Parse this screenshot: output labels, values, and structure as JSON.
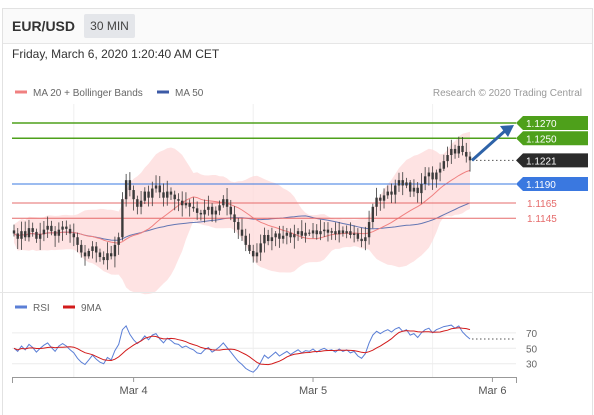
{
  "header": {
    "symbol": "EUR/USD",
    "timeframe": "30 MIN"
  },
  "datetime": "Friday, March 6, 2020 1:20:40 AM CET",
  "credit": "Research © 2020 Trading Central",
  "colors": {
    "ma20": "#f08080",
    "ma50": "#3c5aa6",
    "band": "#fdd9d9",
    "resistance": "#4ea01b",
    "pivot": "#3a78e0",
    "support": "#e56b6b",
    "arrow": "#2e63a8",
    "rsi": "#5b7fd6",
    "rsi_ma": "#d21b1b"
  },
  "chart_data": [
    {
      "type": "candlestick",
      "legend": [
        {
          "name": "MA 20 + Bollinger Bands",
          "color": "#f08080"
        },
        {
          "name": "MA 50",
          "color": "#3c5aa6"
        }
      ],
      "ylim": [
        1.1056,
        1.1295
      ],
      "current_price": "1.1221",
      "levels": [
        {
          "label": "1.1270",
          "value": 1.127,
          "kind": "resistance",
          "tag": "box"
        },
        {
          "label": "1.1250",
          "value": 1.125,
          "kind": "resistance",
          "tag": "box"
        },
        {
          "label": "1.1190",
          "value": 1.119,
          "kind": "pivot",
          "tag": "box"
        },
        {
          "label": "1.1165",
          "value": 1.1165,
          "kind": "support",
          "tag": "text"
        },
        {
          "label": "1.1145",
          "value": 1.1145,
          "kind": "support",
          "tag": "text"
        }
      ],
      "x_ticks": [
        {
          "label": "Mar 4",
          "index": 32
        },
        {
          "label": "Mar 5",
          "index": 80
        },
        {
          "label": "Mar 6",
          "index": 128
        }
      ],
      "close": [
        1.1125,
        1.1118,
        1.1128,
        1.112,
        1.1132,
        1.1127,
        1.1118,
        1.1124,
        1.113,
        1.1135,
        1.1128,
        1.1122,
        1.113,
        1.1134,
        1.1131,
        1.1125,
        1.112,
        1.111,
        1.11,
        1.1095,
        1.1102,
        1.1108,
        1.11,
        1.1094,
        1.109,
        1.1099,
        1.1095,
        1.111,
        1.112,
        1.117,
        1.1195,
        1.1182,
        1.117,
        1.116,
        1.1168,
        1.118,
        1.1172,
        1.1184,
        1.1188,
        1.1179,
        1.1172,
        1.118,
        1.1176,
        1.117,
        1.1168,
        1.1162,
        1.1165,
        1.116,
        1.1158,
        1.1152,
        1.115,
        1.1156,
        1.116,
        1.115,
        1.1155,
        1.1162,
        1.117,
        1.116,
        1.115,
        1.114,
        1.113,
        1.1122,
        1.111,
        1.1102,
        1.1095,
        1.11,
        1.1112,
        1.1123,
        1.1115,
        1.112,
        1.1125,
        1.1118,
        1.1122,
        1.1126,
        1.112,
        1.1124,
        1.1128,
        1.1122,
        1.1126,
        1.1125,
        1.1129,
        1.1124,
        1.1128,
        1.113,
        1.1126,
        1.1128,
        1.1124,
        1.1129,
        1.1125,
        1.1128,
        1.1123,
        1.1125,
        1.1118,
        1.1115,
        1.112,
        1.114,
        1.116,
        1.1172,
        1.1168,
        1.1175,
        1.118,
        1.1176,
        1.1188,
        1.1195,
        1.1188,
        1.1192,
        1.118,
        1.1185,
        1.1178,
        1.119,
        1.12,
        1.1205,
        1.1196,
        1.1205,
        1.121,
        1.122,
        1.1228,
        1.1236,
        1.123,
        1.124,
        1.1232,
        1.1226,
        1.1221
      ],
      "rsi": [
        50,
        46,
        53,
        48,
        55,
        51,
        45,
        50,
        54,
        57,
        51,
        46,
        53,
        56,
        53,
        48,
        44,
        37,
        32,
        29,
        35,
        41,
        36,
        32,
        30,
        38,
        35,
        47,
        55,
        74,
        79,
        68,
        61,
        56,
        60,
        66,
        61,
        67,
        69,
        62,
        57,
        63,
        60,
        56,
        55,
        51,
        53,
        50,
        48,
        44,
        43,
        48,
        51,
        45,
        48,
        52,
        57,
        51,
        45,
        39,
        33,
        29,
        24,
        21,
        19,
        24,
        32,
        41,
        37,
        41,
        45,
        40,
        43,
        46,
        42,
        45,
        48,
        44,
        47,
        46,
        49,
        45,
        48,
        50,
        47,
        48,
        45,
        49,
        46,
        48,
        44,
        46,
        40,
        37,
        43,
        57,
        67,
        72,
        69,
        72,
        74,
        71,
        75,
        77,
        72,
        74,
        67,
        69,
        64,
        70,
        74,
        76,
        70,
        74,
        76,
        78,
        79,
        80,
        76,
        79,
        71,
        66,
        62
      ],
      "rsi_ylim": [
        18,
        84
      ],
      "rsi_ticks": [
        70,
        50,
        30
      ],
      "rsi_legend": [
        {
          "name": "RSI",
          "color": "#5b7fd6"
        },
        {
          "name": "9MA",
          "color": "#d21b1b"
        }
      ]
    }
  ]
}
